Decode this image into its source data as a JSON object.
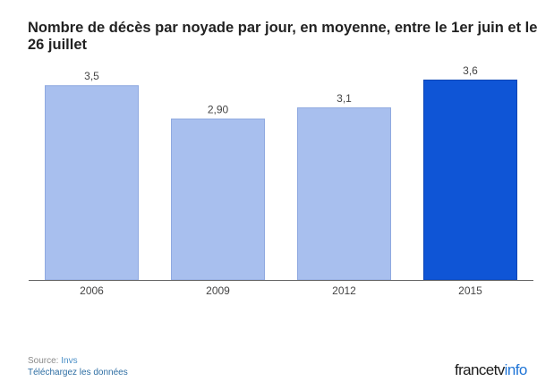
{
  "chart_data": {
    "type": "bar",
    "title": "Nombre de décès par noyade par jour, en moyenne, entre le 1er juin et le 26 juillet",
    "categories": [
      "2006",
      "2009",
      "2012",
      "2015"
    ],
    "values": [
      3.5,
      2.9,
      3.1,
      3.6
    ],
    "value_labels": [
      "3,5",
      "2,90",
      "3,1",
      "3,6"
    ],
    "ylim": [
      0,
      3.6
    ],
    "grid": false,
    "legend": "none",
    "colors": {
      "default_bar": "#a8bfee",
      "default_bar_border": "#8fa9e0",
      "highlight_bar": "#0f55d6",
      "highlight_bar_border": "#0a45b5",
      "axis": "#666666",
      "label_text": "#444444"
    },
    "highlight_category": "2015"
  },
  "footer": {
    "source_label": "Source:",
    "source_value": "Invs",
    "download_text": "Téléchargez les données"
  },
  "brand": {
    "part1": "francetv",
    "part2": "info"
  }
}
